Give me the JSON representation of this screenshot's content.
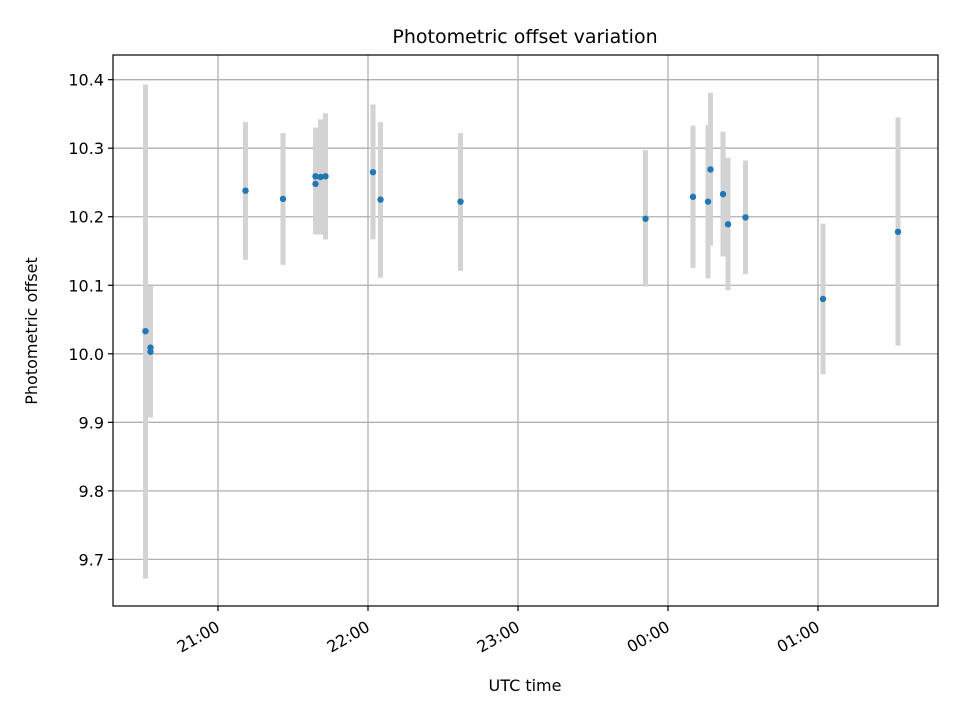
{
  "chart_data": {
    "type": "scatter",
    "title": "Photometric offset variation",
    "xlabel": "UTC time",
    "ylabel": "Photometric offset",
    "x_axis_type": "time",
    "xlim": [
      "20:18",
      "01:48"
    ],
    "ylim": [
      9.632,
      10.436
    ],
    "x_ticks": [
      "21:00",
      "22:00",
      "23:00",
      "00:00",
      "01:00"
    ],
    "y_ticks": [
      9.7,
      9.8,
      9.9,
      10.0,
      10.1,
      10.2,
      10.3,
      10.4
    ],
    "y_tick_labels": [
      "9.7",
      "9.8",
      "9.9",
      "10.0",
      "10.1",
      "10.2",
      "10.3",
      "10.4"
    ],
    "grid": true,
    "colors": {
      "marker": "#1f77b4",
      "errorbar": "#d3d3d3",
      "grid": "#b0b0b0"
    },
    "points": [
      {
        "x": "20:31",
        "y": 10.033,
        "err_low": 9.672,
        "err_high": 10.393
      },
      {
        "x": "20:33",
        "y": 10.009,
        "err_low": 9.92,
        "err_high": 10.098
      },
      {
        "x": "20:33",
        "y": 10.003,
        "err_low": 9.907,
        "err_high": 10.099
      },
      {
        "x": "21:11",
        "y": 10.238,
        "err_low": 10.137,
        "err_high": 10.338
      },
      {
        "x": "21:26",
        "y": 10.226,
        "err_low": 10.13,
        "err_high": 10.322
      },
      {
        "x": "21:39",
        "y": 10.259,
        "err_low": 10.19,
        "err_high": 10.33
      },
      {
        "x": "21:39",
        "y": 10.248,
        "err_low": 10.174,
        "err_high": 10.322
      },
      {
        "x": "21:41",
        "y": 10.258,
        "err_low": 10.174,
        "err_high": 10.342
      },
      {
        "x": "21:43",
        "y": 10.259,
        "err_low": 10.167,
        "err_high": 10.351
      },
      {
        "x": "22:02",
        "y": 10.265,
        "err_low": 10.167,
        "err_high": 10.364
      },
      {
        "x": "22:05",
        "y": 10.225,
        "err_low": 10.111,
        "err_high": 10.338
      },
      {
        "x": "22:37",
        "y": 10.222,
        "err_low": 10.121,
        "err_high": 10.322
      },
      {
        "x": "23:51",
        "y": 10.197,
        "err_low": 10.098,
        "err_high": 10.297
      },
      {
        "x": "00:10",
        "y": 10.229,
        "err_low": 10.125,
        "err_high": 10.333
      },
      {
        "x": "00:16",
        "y": 10.222,
        "err_low": 10.11,
        "err_high": 10.334
      },
      {
        "x": "00:17",
        "y": 10.269,
        "err_low": 10.158,
        "err_high": 10.381
      },
      {
        "x": "00:22",
        "y": 10.233,
        "err_low": 10.142,
        "err_high": 10.324
      },
      {
        "x": "00:24",
        "y": 10.189,
        "err_low": 10.093,
        "err_high": 10.286
      },
      {
        "x": "00:31",
        "y": 10.199,
        "err_low": 10.116,
        "err_high": 10.282
      },
      {
        "x": "01:02",
        "y": 10.08,
        "err_low": 9.97,
        "err_high": 10.19
      },
      {
        "x": "01:32",
        "y": 10.178,
        "err_low": 10.012,
        "err_high": 10.345
      }
    ]
  }
}
